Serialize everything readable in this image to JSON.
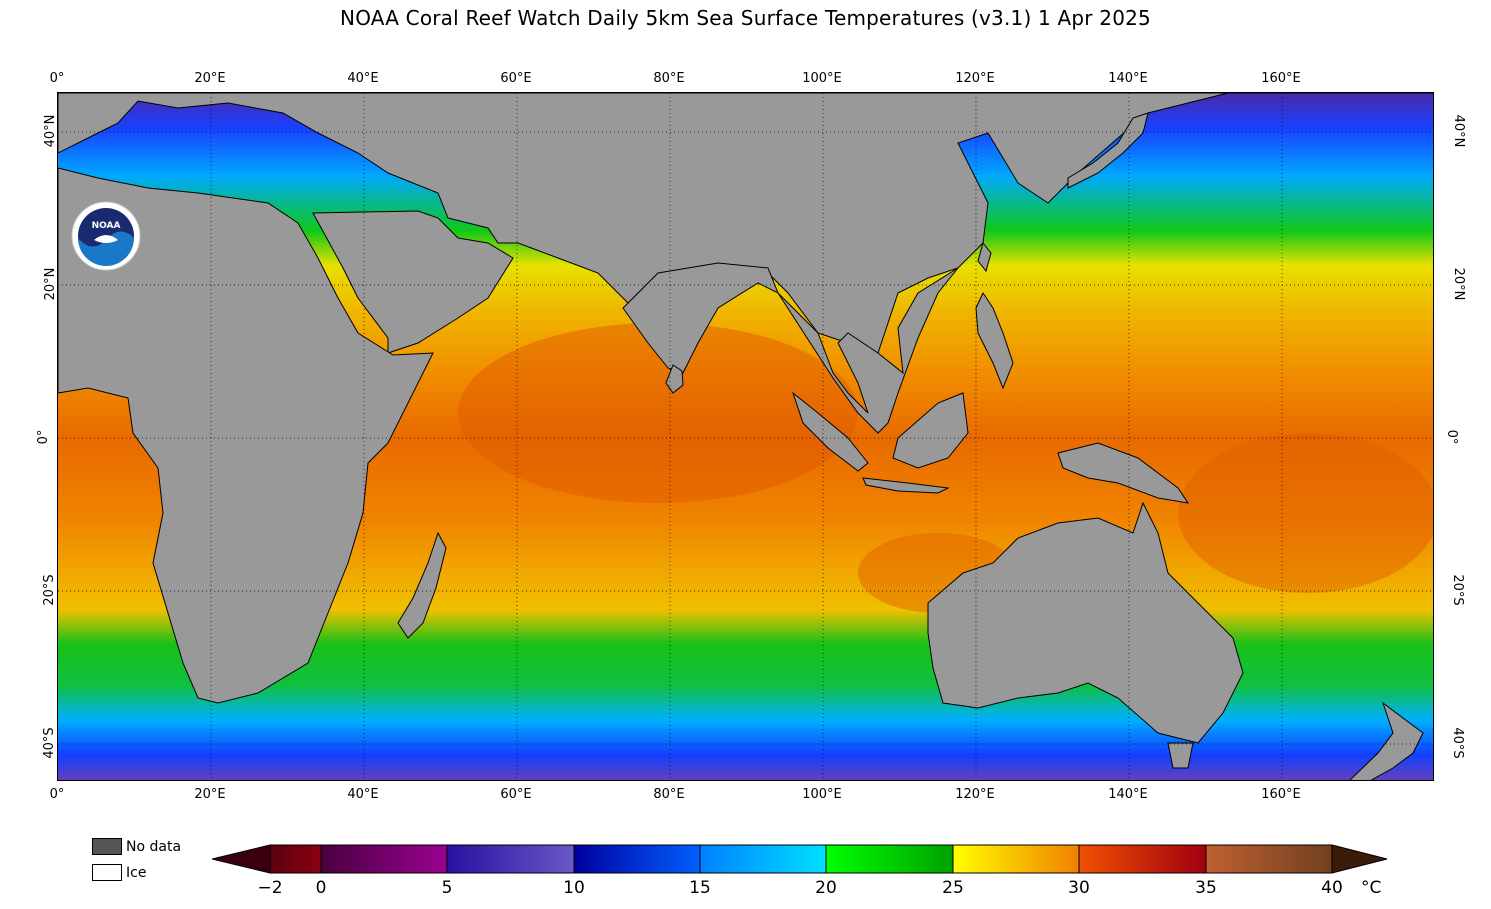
{
  "title": "NOAA Coral Reef Watch Daily 5km Sea Surface Temperatures  (v3.1)   1 Apr 2025",
  "logo": {
    "text": "NOAA",
    "icon": "noaa-logo-icon"
  },
  "x_ticks": [
    "0°",
    "20°E",
    "40°E",
    "60°E",
    "80°E",
    "100°E",
    "120°E",
    "140°E",
    "160°E"
  ],
  "y_ticks": [
    "40°N",
    "20°N",
    "0°",
    "20°S",
    "40°S"
  ],
  "legend": {
    "nodata_label": "No data",
    "ice_label": "Ice",
    "nodata_color": "#555555",
    "ice_color": "#ffffff"
  },
  "colorbar": {
    "labels": [
      "−2",
      "0",
      "5",
      "10",
      "15",
      "20",
      "25",
      "30",
      "35",
      "40"
    ],
    "unit": "°C",
    "under_color": "#3a0010",
    "over_color": "#3a1a08"
  },
  "colors": {
    "land": "#999999",
    "warm": "#f08a00",
    "hot": "#e06000",
    "yellow": "#f0c800",
    "green": "#14c814",
    "cyan": "#00b4ff",
    "blue": "#0050ff",
    "purple": "#5030b0"
  }
}
